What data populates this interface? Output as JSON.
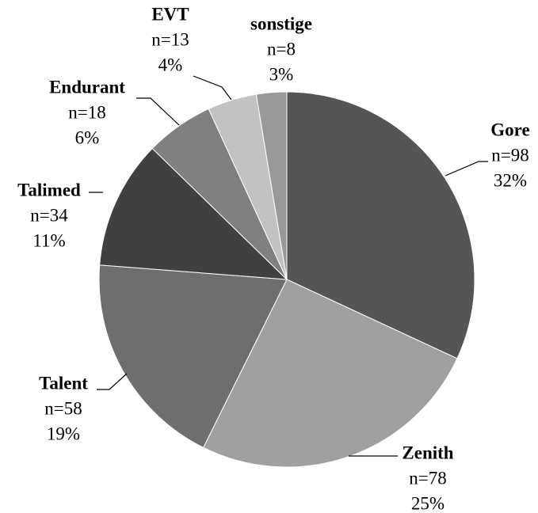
{
  "chart_data": {
    "type": "pie",
    "categories": [
      "Gore",
      "Zenith",
      "Talent",
      "Talimed",
      "Endurant",
      "EVT",
      "sonstige"
    ],
    "values": [
      98,
      78,
      58,
      34,
      18,
      13,
      8
    ],
    "value_labels": [
      "n=98",
      "n=78",
      "n=58",
      "n=34",
      "n=18",
      "n=13",
      "n=8"
    ],
    "percentages": [
      32,
      25,
      19,
      11,
      6,
      4,
      3
    ],
    "percentage_labels": [
      "32%",
      "25%",
      "19%",
      "11%",
      "6%",
      "4%",
      "3%"
    ],
    "colors": [
      "#555555",
      "#a0a0a0",
      "#6e6e6e",
      "#404040",
      "#808080",
      "#c2c2c2",
      "#999999"
    ]
  }
}
